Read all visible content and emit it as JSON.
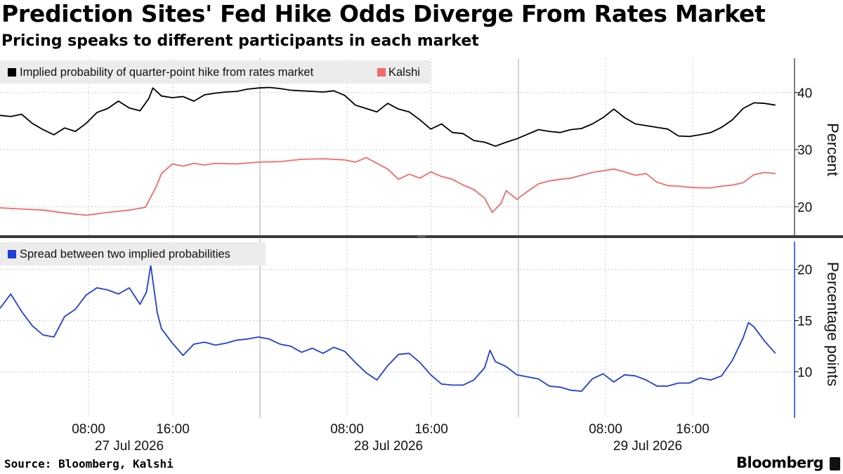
{
  "title": "Prediction Sites' Fed Hike Odds Diverge From Rates Market",
  "subtitle": "Pricing speaks to different participants in each market",
  "source": "Source: Bloomberg, Kalshi",
  "brand": "Bloomberg",
  "colors": {
    "rates": "#000000",
    "kalshi": "#f06b6b",
    "spread": "#1f3fd6",
    "grid": "#c8c8c8",
    "legend_bg": "#ececec"
  },
  "chart_data": [
    {
      "type": "line",
      "ylabel": "Percent",
      "ylim": [
        15,
        46
      ],
      "yticks": [
        20,
        30,
        40
      ],
      "x_time_hours_range": [
        0,
        72
      ],
      "legend_position": "top-left",
      "grid": true,
      "series": [
        {
          "name": "Implied probability of quarter-point hike from rates market",
          "color": "#000000",
          "points": [
            [
              0,
              36
            ],
            [
              1,
              35.8
            ],
            [
              2,
              36.2
            ],
            [
              3,
              34.6
            ],
            [
              4,
              33.5
            ],
            [
              5,
              32.6
            ],
            [
              6,
              33.8
            ],
            [
              7,
              33.2
            ],
            [
              8,
              34.6
            ],
            [
              9,
              36.5
            ],
            [
              10,
              37.2
            ],
            [
              11,
              38.5
            ],
            [
              12,
              37.3
            ],
            [
              13,
              36.8
            ],
            [
              13.8,
              38.9
            ],
            [
              14.2,
              40.8
            ],
            [
              15,
              39.4
            ],
            [
              16,
              39.1
            ],
            [
              17,
              39.3
            ],
            [
              18,
              38.5
            ],
            [
              19,
              39.6
            ],
            [
              20,
              39.9
            ],
            [
              21,
              40.1
            ],
            [
              22,
              40.2
            ],
            [
              23,
              40.6
            ],
            [
              24,
              40.8
            ],
            [
              25,
              40.9
            ],
            [
              26,
              40.7
            ],
            [
              27,
              40.4
            ],
            [
              28,
              40.3
            ],
            [
              29,
              40.2
            ],
            [
              30,
              40.1
            ],
            [
              31,
              40.3
            ],
            [
              32,
              39.5
            ],
            [
              33,
              37.8
            ],
            [
              34,
              37.2
            ],
            [
              35,
              36.6
            ],
            [
              36,
              38.1
            ],
            [
              37,
              37.1
            ],
            [
              38,
              36.6
            ],
            [
              39,
              35.2
            ],
            [
              40,
              33.6
            ],
            [
              41,
              34.5
            ],
            [
              42,
              33.0
            ],
            [
              43,
              32.8
            ],
            [
              44,
              31.6
            ],
            [
              45,
              31.3
            ],
            [
              46,
              30.6
            ],
            [
              47,
              31.3
            ],
            [
              48,
              31.9
            ],
            [
              49,
              32.7
            ],
            [
              50,
              33.5
            ],
            [
              51,
              33.2
            ],
            [
              52,
              33.0
            ],
            [
              53,
              33.5
            ],
            [
              54,
              33.7
            ],
            [
              55,
              34.5
            ],
            [
              56,
              35.6
            ],
            [
              57,
              37.1
            ],
            [
              58,
              35.6
            ],
            [
              59,
              34.5
            ],
            [
              60,
              34.2
            ],
            [
              61,
              33.9
            ],
            [
              62,
              33.6
            ],
            [
              63,
              32.4
            ],
            [
              64,
              32.3
            ],
            [
              65,
              32.6
            ],
            [
              66,
              33.0
            ],
            [
              67,
              33.9
            ],
            [
              68,
              35.2
            ],
            [
              69,
              37.2
            ],
            [
              70,
              38.2
            ],
            [
              71,
              38.1
            ],
            [
              72,
              37.8
            ]
          ]
        },
        {
          "name": "Kalshi",
          "color": "#f06b6b",
          "points": [
            [
              0,
              19.8
            ],
            [
              2,
              19.6
            ],
            [
              4,
              19.4
            ],
            [
              6,
              18.9
            ],
            [
              8,
              18.5
            ],
            [
              10,
              19.0
            ],
            [
              12,
              19.4
            ],
            [
              13.5,
              19.9
            ],
            [
              14.5,
              23.5
            ],
            [
              15,
              25.8
            ],
            [
              16,
              27.5
            ],
            [
              17,
              27.1
            ],
            [
              18,
              27.6
            ],
            [
              19,
              27.3
            ],
            [
              20,
              27.6
            ],
            [
              22,
              27.5
            ],
            [
              24,
              27.8
            ],
            [
              26,
              27.9
            ],
            [
              28,
              28.3
            ],
            [
              30,
              28.4
            ],
            [
              32,
              28.2
            ],
            [
              33,
              27.8
            ],
            [
              34,
              28.6
            ],
            [
              35,
              27.6
            ],
            [
              36,
              26.6
            ],
            [
              37,
              24.8
            ],
            [
              38,
              25.7
            ],
            [
              39,
              25.0
            ],
            [
              40,
              26.1
            ],
            [
              41,
              25.3
            ],
            [
              42,
              24.8
            ],
            [
              43,
              23.8
            ],
            [
              44,
              23.0
            ],
            [
              45,
              21.5
            ],
            [
              45.7,
              19.0
            ],
            [
              46.5,
              20.5
            ],
            [
              47,
              22.8
            ],
            [
              48,
              21.3
            ],
            [
              49,
              22.7
            ],
            [
              50,
              24.0
            ],
            [
              51,
              24.5
            ],
            [
              52,
              24.8
            ],
            [
              53,
              25.0
            ],
            [
              54,
              25.5
            ],
            [
              55,
              26.0
            ],
            [
              56,
              26.3
            ],
            [
              57,
              26.6
            ],
            [
              58,
              26.1
            ],
            [
              59,
              25.5
            ],
            [
              60,
              25.8
            ],
            [
              61,
              24.3
            ],
            [
              62,
              23.7
            ],
            [
              63,
              23.6
            ],
            [
              64,
              23.4
            ],
            [
              65,
              23.3
            ],
            [
              66,
              23.3
            ],
            [
              67,
              23.6
            ],
            [
              68,
              23.8
            ],
            [
              69,
              24.2
            ],
            [
              70,
              25.6
            ],
            [
              71,
              26.0
            ],
            [
              72,
              25.8
            ]
          ]
        }
      ]
    },
    {
      "type": "line",
      "ylabel": "Percentage points",
      "ylim": [
        5.5,
        23
      ],
      "yticks": [
        10,
        15,
        20
      ],
      "x_ticks_labels": [
        "08:00",
        "16:00",
        "08:00",
        "16:00",
        "08:00",
        "16:00"
      ],
      "x_date_labels": [
        "27 Jul 2026",
        "28 Jul 2026",
        "29 Jul 2026"
      ],
      "legend_position": "top-left",
      "grid": true,
      "series": [
        {
          "name": "Spread between two implied probabilities",
          "color": "#1f3fd6",
          "points": [
            [
              0,
              16.2
            ],
            [
              1,
              17.6
            ],
            [
              2,
              15.9
            ],
            [
              3,
              14.5
            ],
            [
              4,
              13.6
            ],
            [
              5,
              13.4
            ],
            [
              6,
              15.4
            ],
            [
              7,
              16.1
            ],
            [
              8,
              17.5
            ],
            [
              9,
              18.2
            ],
            [
              10,
              18.0
            ],
            [
              11,
              17.6
            ],
            [
              12,
              18.2
            ],
            [
              13,
              16.6
            ],
            [
              13.6,
              17.8
            ],
            [
              14.0,
              20.4
            ],
            [
              14.6,
              15.8
            ],
            [
              15,
              14.2
            ],
            [
              16,
              12.8
            ],
            [
              17,
              11.6
            ],
            [
              18,
              12.7
            ],
            [
              19,
              12.9
            ],
            [
              20,
              12.6
            ],
            [
              21,
              12.8
            ],
            [
              22,
              13.1
            ],
            [
              23,
              13.2
            ],
            [
              24,
              13.4
            ],
            [
              25,
              13.2
            ],
            [
              26,
              12.7
            ],
            [
              27,
              12.5
            ],
            [
              28,
              11.9
            ],
            [
              29,
              12.3
            ],
            [
              30,
              11.8
            ],
            [
              31,
              12.4
            ],
            [
              32,
              12.0
            ],
            [
              33,
              10.9
            ],
            [
              34,
              9.9
            ],
            [
              35,
              9.2
            ],
            [
              36,
              10.6
            ],
            [
              37,
              11.7
            ],
            [
              38,
              11.8
            ],
            [
              39,
              10.9
            ],
            [
              40,
              9.7
            ],
            [
              41,
              8.8
            ],
            [
              42,
              8.7
            ],
            [
              43,
              8.7
            ],
            [
              44,
              9.2
            ],
            [
              45,
              10.4
            ],
            [
              45.5,
              12.1
            ],
            [
              46,
              11.0
            ],
            [
              47,
              10.5
            ],
            [
              48,
              9.7
            ],
            [
              49,
              9.5
            ],
            [
              50,
              9.3
            ],
            [
              51,
              8.6
            ],
            [
              52,
              8.5
            ],
            [
              53,
              8.2
            ],
            [
              54,
              8.1
            ],
            [
              55,
              9.3
            ],
            [
              56,
              9.8
            ],
            [
              57,
              9.0
            ],
            [
              58,
              9.7
            ],
            [
              59,
              9.6
            ],
            [
              60,
              9.2
            ],
            [
              61,
              8.6
            ],
            [
              62,
              8.6
            ],
            [
              63,
              8.9
            ],
            [
              64,
              8.9
            ],
            [
              65,
              9.4
            ],
            [
              66,
              9.2
            ],
            [
              67,
              9.6
            ],
            [
              68,
              11.1
            ],
            [
              69,
              13.3
            ],
            [
              69.5,
              14.8
            ],
            [
              70,
              14.4
            ],
            [
              71,
              13.0
            ],
            [
              72,
              11.8
            ]
          ]
        }
      ]
    }
  ]
}
